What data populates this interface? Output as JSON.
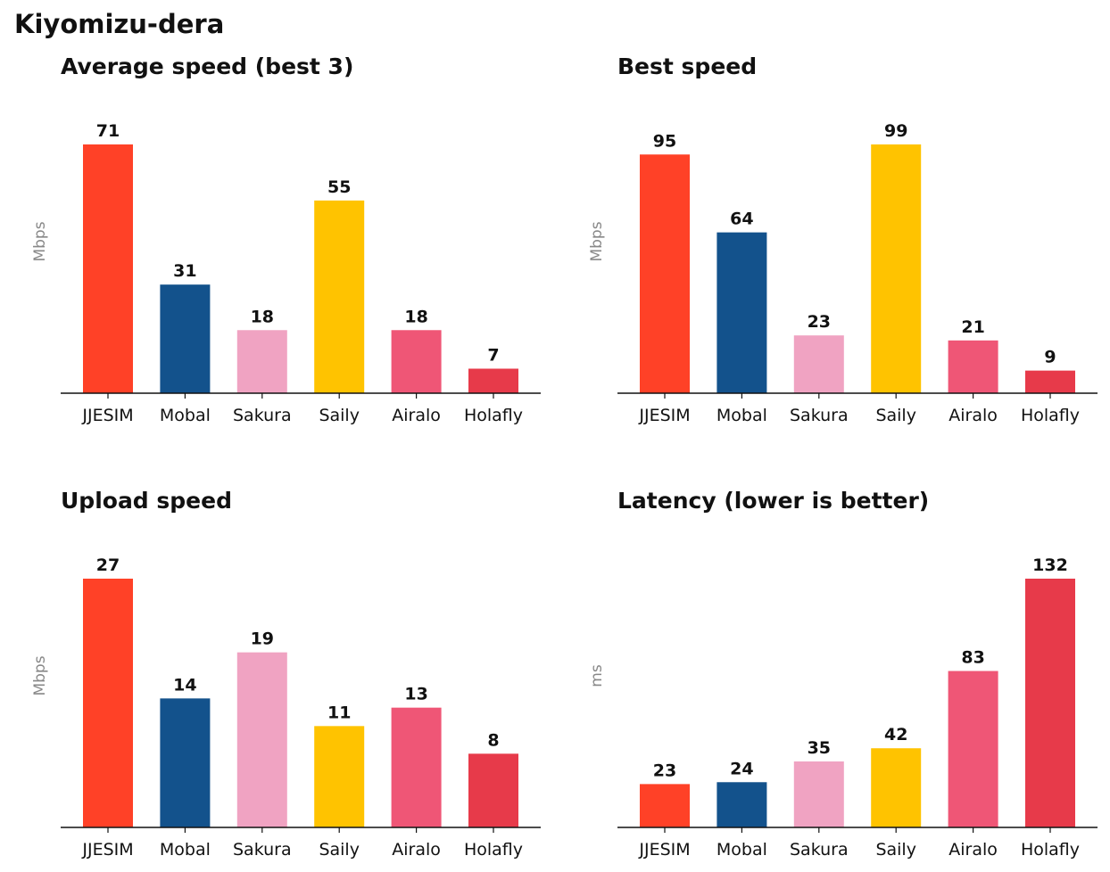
{
  "page": {
    "title": "Kiyomizu-dera"
  },
  "chart_data": [
    {
      "type": "bar",
      "title": "Average speed (best 3)",
      "ylabel": "Mbps",
      "categories": [
        "JJESIM",
        "Mobal",
        "Sakura",
        "Saily",
        "Airalo",
        "Holafly"
      ],
      "values": [
        71,
        31,
        18,
        55,
        18,
        7
      ],
      "ylim": [
        0,
        71
      ],
      "grid": false,
      "legend": "none"
    },
    {
      "type": "bar",
      "title": "Best speed",
      "ylabel": "Mbps",
      "categories": [
        "JJESIM",
        "Mobal",
        "Sakura",
        "Saily",
        "Airalo",
        "Holafly"
      ],
      "values": [
        95,
        64,
        23,
        99,
        21,
        9
      ],
      "ylim": [
        0,
        99
      ],
      "grid": false,
      "legend": "none"
    },
    {
      "type": "bar",
      "title": "Upload speed",
      "ylabel": "Mbps",
      "categories": [
        "JJESIM",
        "Mobal",
        "Sakura",
        "Saily",
        "Airalo",
        "Holafly"
      ],
      "values": [
        27,
        14,
        19,
        11,
        13,
        8
      ],
      "ylim": [
        0,
        27
      ],
      "grid": false,
      "legend": "none"
    },
    {
      "type": "bar",
      "title": "Latency (lower is better)",
      "ylabel": "ms",
      "categories": [
        "JJESIM",
        "Mobal",
        "Sakura",
        "Saily",
        "Airalo",
        "Holafly"
      ],
      "values": [
        23,
        24,
        35,
        42,
        83,
        132
      ],
      "ylim": [
        0,
        132
      ],
      "grid": false,
      "legend": "none"
    }
  ],
  "colors": {
    "JJESIM": "#ff4127",
    "Mobal": "#13528c",
    "Sakura": "#f0a3c2",
    "Saily": "#ffc300",
    "Airalo": "#ef5676",
    "Holafly": "#e73a4a",
    "axis": "#111111",
    "ylabel": "#888888"
  }
}
